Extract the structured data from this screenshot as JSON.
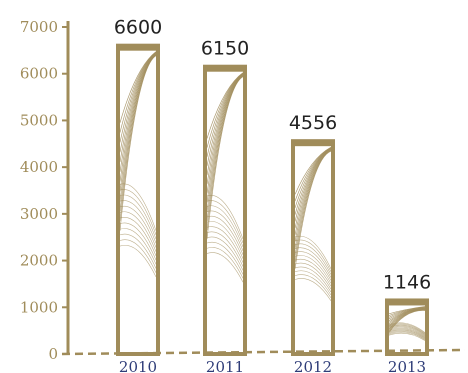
{
  "chart_data": {
    "type": "bar",
    "categories": [
      "2010",
      "2011",
      "2012",
      "2013"
    ],
    "values": [
      6600,
      6150,
      4556,
      1146
    ],
    "value_labels": [
      "6600",
      "6150",
      "4556",
      "1146"
    ],
    "yticks": [
      "0",
      "1000",
      "2000",
      "3000",
      "4000",
      "5000",
      "6000",
      "7000"
    ],
    "ylim": [
      0,
      7000
    ],
    "grid": false,
    "colors": {
      "bar": "#a08c5a",
      "axis": "#a08c5a",
      "tick_text": "#a08c5a",
      "category_text": "#2e3c78",
      "value_text": "#222222"
    }
  }
}
